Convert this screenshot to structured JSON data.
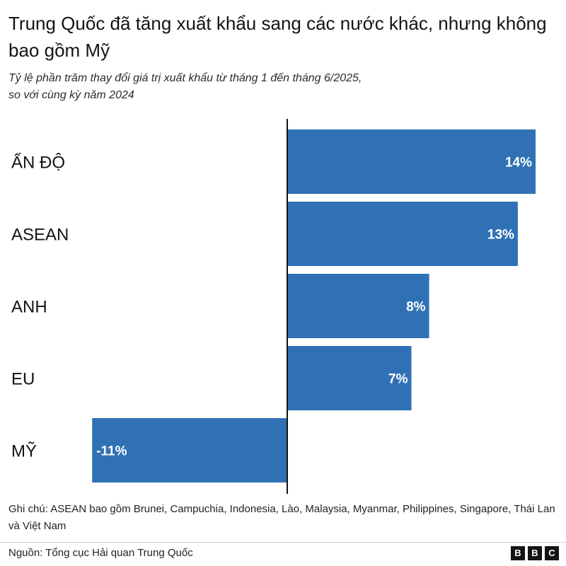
{
  "chart_data": {
    "type": "bar",
    "orientation": "horizontal",
    "title": "Trung Quốc đã tăng xuất khẩu sang các nước khác, nhưng không bao gồm Mỹ",
    "subtitle_lines": [
      "Tỷ lệ phần trăm thay đổi giá trị xuất khẩu từ tháng 1 đến tháng 6/2025,",
      "so với cùng kỳ năm 2024"
    ],
    "categories": [
      "ẤN ĐỘ",
      "ASEAN",
      "ANH",
      "EU",
      "MỸ"
    ],
    "values": [
      14,
      13,
      8,
      7,
      -11
    ],
    "data_labels": [
      "14%",
      "13%",
      "8%",
      "7%",
      "-11%"
    ],
    "xlim": [
      -11,
      14
    ],
    "bar_color": "#3071b5",
    "grid": false
  },
  "note": "Ghi chú: ASEAN bao gồm Brunei, Campuchia, Indonesia, Lào, Malaysia, Myanmar, Philippines, Singapore, Thái Lan và Việt Nam",
  "source": "Nguồn: Tổng cục Hải quan Trung Quốc",
  "logo": [
    "B",
    "B",
    "C"
  ]
}
